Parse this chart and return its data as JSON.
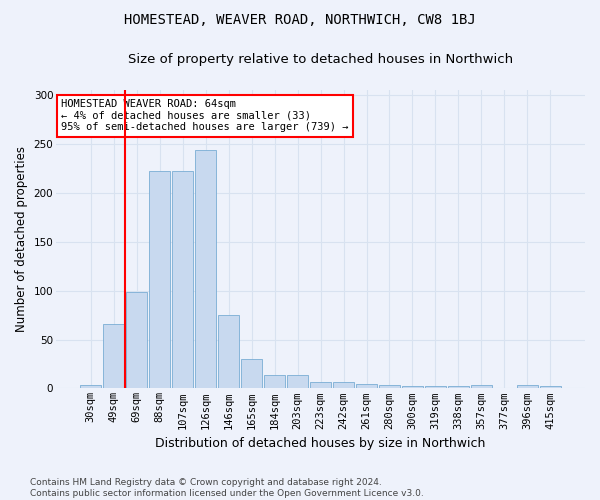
{
  "title": "HOMESTEAD, WEAVER ROAD, NORTHWICH, CW8 1BJ",
  "subtitle": "Size of property relative to detached houses in Northwich",
  "xlabel": "Distribution of detached houses by size in Northwich",
  "ylabel": "Number of detached properties",
  "categories": [
    "30sqm",
    "49sqm",
    "69sqm",
    "88sqm",
    "107sqm",
    "126sqm",
    "146sqm",
    "165sqm",
    "184sqm",
    "203sqm",
    "223sqm",
    "242sqm",
    "261sqm",
    "280sqm",
    "300sqm",
    "319sqm",
    "338sqm",
    "357sqm",
    "377sqm",
    "396sqm",
    "415sqm"
  ],
  "values": [
    3,
    66,
    99,
    222,
    222,
    244,
    75,
    30,
    14,
    14,
    7,
    7,
    5,
    3,
    2,
    2,
    2,
    3,
    0,
    3,
    2
  ],
  "bar_color": "#c8d9ef",
  "bar_edge_color": "#7aadd4",
  "grid_color": "#d8e2f0",
  "background_color": "#eef2fb",
  "vline_color": "red",
  "vline_x": 1.5,
  "annotation_text": "HOMESTEAD WEAVER ROAD: 64sqm\n← 4% of detached houses are smaller (33)\n95% of semi-detached houses are larger (739) →",
  "annotation_box_color": "white",
  "annotation_box_edge": "red",
  "footnote": "Contains HM Land Registry data © Crown copyright and database right 2024.\nContains public sector information licensed under the Open Government Licence v3.0.",
  "ylim": [
    0,
    305
  ],
  "yticks": [
    0,
    50,
    100,
    150,
    200,
    250,
    300
  ],
  "title_fontsize": 10,
  "subtitle_fontsize": 9.5,
  "xlabel_fontsize": 9,
  "ylabel_fontsize": 8.5,
  "tick_fontsize": 7.5,
  "footnote_fontsize": 6.5
}
